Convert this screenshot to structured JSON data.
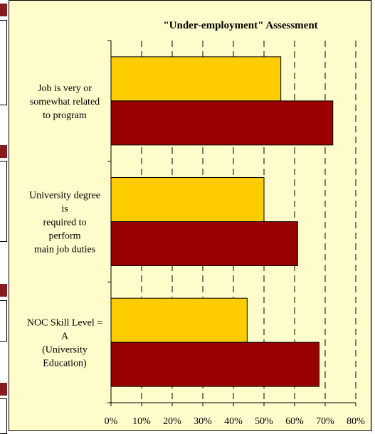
{
  "colors": {
    "background": "#fffccc",
    "series_gold": "#ffcc00",
    "series_maroon": "#990000",
    "strip_red": "#8b1a1a"
  },
  "chart_data": {
    "type": "bar",
    "orientation": "horizontal",
    "title": "\"Under-employment\" Assessment",
    "xlabel": "",
    "ylabel": "",
    "xlim": [
      0,
      80
    ],
    "x_ticks": [
      "0%",
      "10%",
      "20%",
      "30%",
      "40%",
      "50%",
      "60%",
      "70%",
      "80%"
    ],
    "grid": "vertical dashed",
    "legend": "none",
    "categories": [
      [
        "Job is very or",
        "somewhat related",
        "to program"
      ],
      [
        "University degree",
        "is",
        "required to",
        "perform",
        "main job duties"
      ],
      [
        "NOC Skill Level =",
        "A",
        "(University",
        "Education)"
      ]
    ],
    "series": [
      {
        "color": "#ffcc00",
        "values": [
          55.5,
          50,
          44.5
        ]
      },
      {
        "color": "#990000",
        "values": [
          72.5,
          61,
          68
        ]
      }
    ]
  }
}
